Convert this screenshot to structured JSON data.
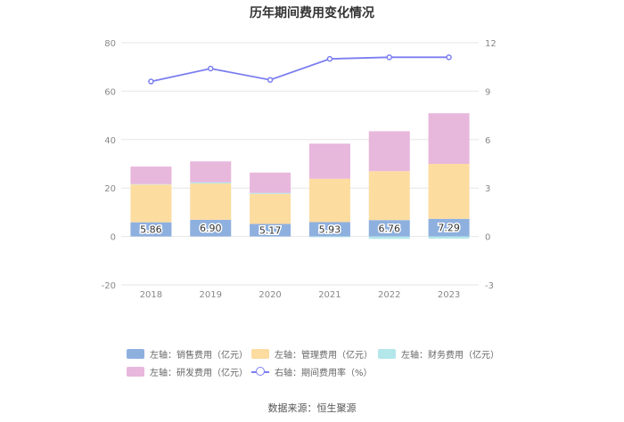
{
  "chart_data": {
    "type": "bar",
    "title": "历年期间费用变化情况",
    "categories": [
      "2018",
      "2019",
      "2020",
      "2021",
      "2022",
      "2023"
    ],
    "left_axis": {
      "ylim": [
        -20,
        80
      ],
      "ticks": [
        "-20",
        "0",
        "20",
        "40",
        "60",
        "80"
      ]
    },
    "right_axis": {
      "ylim": [
        -3,
        12
      ],
      "ticks": [
        "-3",
        "0",
        "3",
        "6",
        "9",
        "12"
      ]
    },
    "series": [
      {
        "name": "左轴：销售费用（亿元）",
        "type": "bar",
        "color": "#8eb0df",
        "values": [
          5.86,
          6.9,
          5.17,
          5.93,
          6.76,
          7.29
        ],
        "labels": [
          "5.86",
          "6.90",
          "5.17",
          "5.93",
          "6.76",
          "7.29"
        ]
      },
      {
        "name": "左轴：管理费用（亿元）",
        "type": "bar",
        "color": "#fddca0",
        "values": [
          15.6,
          15.0,
          12.4,
          17.9,
          20.2,
          22.7
        ]
      },
      {
        "name": "左轴：财务费用（亿元）",
        "type": "bar",
        "color": "#b4e7ea",
        "values": [
          0.2,
          0.5,
          0.4,
          -0.3,
          -1.0,
          -0.9
        ]
      },
      {
        "name": "左轴：研发费用（亿元）",
        "type": "bar",
        "color": "#e8b7dc",
        "values": [
          7.2,
          8.6,
          8.4,
          14.5,
          16.5,
          20.9
        ]
      },
      {
        "name": "右轴：期间费用率（%）",
        "type": "line",
        "color": "#7b7ef0",
        "values": [
          9.6,
          10.4,
          9.7,
          11.0,
          11.1,
          11.1
        ]
      }
    ]
  },
  "legend": {
    "sales": "左轴：销售费用（亿元）",
    "admin": "左轴：管理费用（亿元）",
    "finance": "左轴：财务费用（亿元）",
    "rnd": "左轴：研发费用（亿元）",
    "rate": "右轴：期间费用率（%）"
  },
  "source": "数据来源：恒生聚源"
}
